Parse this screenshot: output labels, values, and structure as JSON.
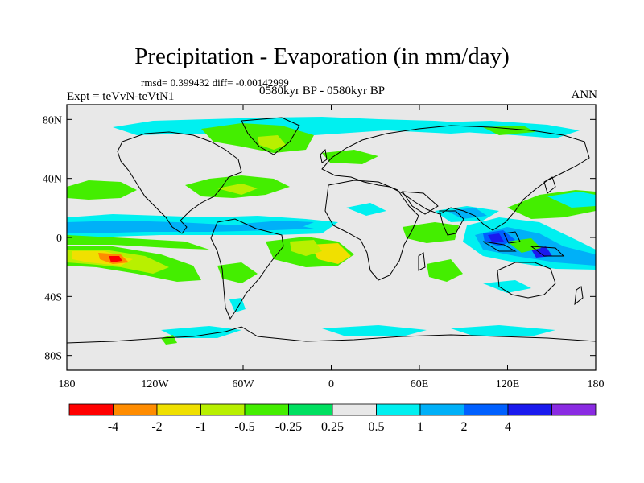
{
  "title": "Precipitation - Evaporation (in mm/day)",
  "stats": "rmsd= 0.399432 diff= -0.00142999",
  "experiment": "Expt = teVvN-teVtN1",
  "period": "0580kyr BP - 0580kyr BP",
  "season": "ANN",
  "axes": {
    "x_ticks": [
      "180",
      "120W",
      "60W",
      "0",
      "60E",
      "120E",
      "180"
    ],
    "y_ticks": [
      "80N",
      "40N",
      "0",
      "40S",
      "80S"
    ]
  },
  "colorbar": {
    "labels": [
      "-4",
      "-2",
      "-1",
      "-0.5",
      "-0.25",
      "0.25",
      "0.5",
      "1",
      "2",
      "4"
    ],
    "colors": [
      "#ff0000",
      "#ff8c00",
      "#f0e000",
      "#b8f000",
      "#44ee00",
      "#00e060",
      "#e8e8e8",
      "#00f0f0",
      "#00b0f8",
      "#0060ff",
      "#1a1aee",
      "#8a2be2"
    ]
  },
  "colors": {
    "ocean_background": "#e8e8e8",
    "coastline": "#000000"
  }
}
